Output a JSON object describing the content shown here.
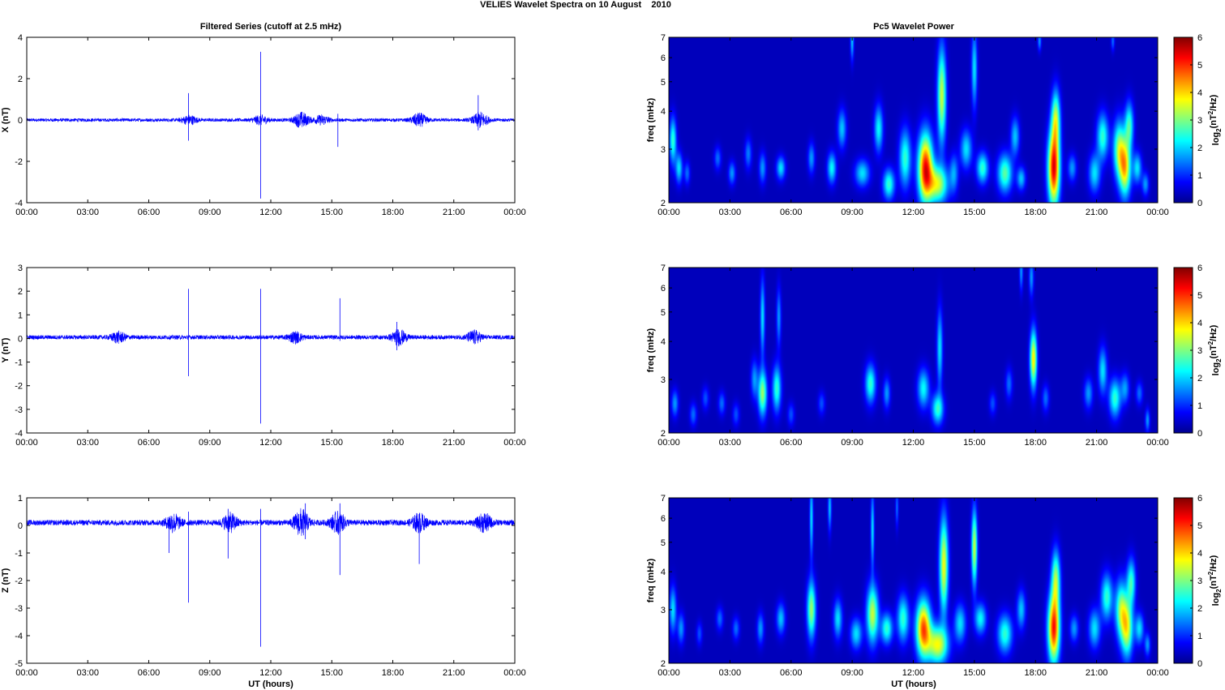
{
  "figure": {
    "suptitle": "VELIES Wavelet Spectra on 10 August    2010",
    "left_title": "Filtered Series (cutoff at 2.5 mHz)",
    "right_title": "Pc5 Wavelet Power",
    "xlabel": "UT (hours)",
    "freq_label": "freq (mHz)",
    "colorbar_label": "log2(nT2/Hz)",
    "colorbar_ticks": [
      0,
      1,
      2,
      3,
      4,
      5,
      6
    ],
    "x_tick_labels": [
      "00:00",
      "03:00",
      "06:00",
      "09:00",
      "12:00",
      "15:00",
      "18:00",
      "21:00",
      "00:00"
    ],
    "line_color": "#0000ff"
  },
  "chart_data": [
    {
      "type": "line",
      "name": "X",
      "ylabel": "X (nT)",
      "xlim": [
        0,
        24
      ],
      "ylim": [
        -4,
        4
      ],
      "yticks": [
        -4,
        -2,
        0,
        2,
        4
      ],
      "baseline": 0.0,
      "noise_amp": 0.08,
      "bursts": [
        [
          8.0,
          0.2
        ],
        [
          11.5,
          0.2
        ],
        [
          13.5,
          0.35
        ],
        [
          14.5,
          0.2
        ],
        [
          19.3,
          0.3
        ],
        [
          22.3,
          0.35
        ]
      ],
      "spikes": [
        [
          7.95,
          1.3,
          -1.0
        ],
        [
          11.5,
          3.3,
          -3.8
        ],
        [
          15.3,
          0.3,
          -1.3
        ],
        [
          22.2,
          1.2,
          -0.5
        ]
      ]
    },
    {
      "type": "line",
      "name": "Y",
      "ylabel": "Y (nT)",
      "xlim": [
        0,
        24
      ],
      "ylim": [
        -4,
        3
      ],
      "yticks": [
        -4,
        -3,
        -2,
        -1,
        0,
        1,
        2,
        3
      ],
      "baseline": 0.05,
      "noise_amp": 0.09,
      "bursts": [
        [
          4.5,
          0.2
        ],
        [
          13.2,
          0.2
        ],
        [
          18.3,
          0.3
        ],
        [
          22.0,
          0.25
        ]
      ],
      "spikes": [
        [
          7.95,
          2.1,
          -1.6
        ],
        [
          11.5,
          2.1,
          -3.6
        ],
        [
          15.4,
          1.7,
          -0.1
        ],
        [
          18.2,
          0.7,
          -0.5
        ],
        [
          24.0,
          0.1,
          -1.0
        ]
      ]
    },
    {
      "type": "line",
      "name": "Z",
      "ylabel": "Z (nT)",
      "xlim": [
        0,
        24
      ],
      "ylim": [
        -5,
        1
      ],
      "yticks": [
        -5,
        -4,
        -3,
        -2,
        -1,
        0,
        1
      ],
      "baseline": 0.1,
      "noise_amp": 0.1,
      "bursts": [
        [
          7.2,
          0.3
        ],
        [
          10.0,
          0.3
        ],
        [
          13.5,
          0.45
        ],
        [
          15.3,
          0.35
        ],
        [
          19.3,
          0.3
        ],
        [
          22.5,
          0.3
        ]
      ],
      "spikes": [
        [
          7.0,
          0.3,
          -1.0
        ],
        [
          7.95,
          0.5,
          -2.8
        ],
        [
          9.9,
          0.6,
          -1.2
        ],
        [
          11.5,
          0.6,
          -4.4
        ],
        [
          13.7,
          0.8,
          -0.5
        ],
        [
          15.4,
          0.8,
          -1.8
        ],
        [
          19.3,
          0.4,
          -1.4
        ]
      ]
    },
    {
      "type": "heatmap",
      "name": "X",
      "ylabel": "freq (mHz)",
      "xlim": [
        0,
        24
      ],
      "ylim": [
        2,
        7
      ],
      "yscale": "log",
      "yticks": [
        2,
        3,
        4,
        5,
        6,
        7
      ],
      "clim": [
        0,
        6
      ],
      "blobs": [
        [
          0.2,
          3.2,
          2.5,
          0.12,
          0.12
        ],
        [
          0.5,
          2.6,
          2.0,
          0.12,
          0.08
        ],
        [
          0.9,
          2.5,
          1.2,
          0.1,
          0.06
        ],
        [
          2.4,
          2.8,
          1.2,
          0.12,
          0.06
        ],
        [
          3.1,
          2.5,
          1.5,
          0.12,
          0.06
        ],
        [
          3.9,
          2.9,
          1.3,
          0.12,
          0.08
        ],
        [
          4.6,
          2.6,
          1.5,
          0.12,
          0.08
        ],
        [
          5.5,
          2.6,
          2.0,
          0.15,
          0.06
        ],
        [
          7.0,
          2.8,
          1.5,
          0.12,
          0.08
        ],
        [
          8.0,
          2.6,
          2.2,
          0.15,
          0.08
        ],
        [
          8.5,
          3.5,
          1.8,
          0.15,
          0.1
        ],
        [
          9.0,
          6.8,
          1.8,
          0.06,
          0.1
        ],
        [
          9.5,
          2.5,
          2.0,
          0.25,
          0.07
        ],
        [
          10.3,
          3.5,
          2.2,
          0.15,
          0.12
        ],
        [
          10.8,
          2.3,
          2.5,
          0.2,
          0.08
        ],
        [
          11.6,
          2.8,
          2.5,
          0.2,
          0.15
        ],
        [
          12.6,
          2.6,
          5.5,
          0.25,
          0.18
        ],
        [
          13.2,
          2.3,
          3.5,
          0.35,
          0.1
        ],
        [
          13.4,
          4.5,
          3.5,
          0.15,
          0.25
        ],
        [
          14.0,
          2.5,
          1.5,
          0.15,
          0.1
        ],
        [
          14.6,
          3.0,
          2.0,
          0.2,
          0.1
        ],
        [
          15.0,
          5.5,
          2.0,
          0.1,
          0.2
        ],
        [
          15.4,
          2.6,
          2.5,
          0.2,
          0.08
        ],
        [
          16.5,
          2.5,
          2.8,
          0.25,
          0.1
        ],
        [
          17.0,
          3.3,
          1.8,
          0.15,
          0.1
        ],
        [
          17.3,
          2.4,
          1.8,
          0.15,
          0.06
        ],
        [
          18.2,
          6.8,
          1.5,
          0.06,
          0.05
        ],
        [
          18.9,
          2.6,
          5.8,
          0.2,
          0.2
        ],
        [
          19.0,
          3.8,
          3.0,
          0.15,
          0.15
        ],
        [
          19.8,
          2.6,
          1.5,
          0.15,
          0.07
        ],
        [
          20.9,
          2.5,
          2.0,
          0.2,
          0.1
        ],
        [
          21.3,
          3.3,
          2.5,
          0.2,
          0.12
        ],
        [
          21.8,
          6.8,
          1.2,
          0.06,
          0.05
        ],
        [
          22.1,
          3.0,
          3.0,
          0.2,
          0.15
        ],
        [
          22.4,
          2.6,
          4.0,
          0.2,
          0.15
        ],
        [
          22.6,
          3.6,
          2.5,
          0.15,
          0.12
        ],
        [
          23.0,
          2.6,
          2.0,
          0.15,
          0.08
        ],
        [
          23.4,
          2.3,
          1.5,
          0.12,
          0.06
        ]
      ]
    },
    {
      "type": "heatmap",
      "name": "Y",
      "ylabel": "freq (mHz)",
      "xlim": [
        0,
        24
      ],
      "ylim": [
        2,
        7
      ],
      "yscale": "log",
      "yticks": [
        2,
        3,
        4,
        5,
        6,
        7
      ],
      "clim": [
        0,
        6
      ],
      "blobs": [
        [
          0.3,
          2.5,
          1.5,
          0.12,
          0.07
        ],
        [
          1.2,
          2.3,
          1.2,
          0.12,
          0.06
        ],
        [
          1.8,
          2.6,
          1.0,
          0.12,
          0.06
        ],
        [
          2.6,
          2.5,
          1.2,
          0.12,
          0.06
        ],
        [
          3.3,
          2.3,
          1.0,
          0.12,
          0.06
        ],
        [
          4.2,
          3.0,
          1.5,
          0.12,
          0.1
        ],
        [
          4.6,
          2.7,
          3.2,
          0.15,
          0.12
        ],
        [
          4.6,
          4.8,
          2.0,
          0.08,
          0.2
        ],
        [
          5.3,
          2.8,
          2.5,
          0.15,
          0.12
        ],
        [
          5.4,
          4.8,
          1.5,
          0.08,
          0.15
        ],
        [
          6.0,
          2.3,
          1.0,
          0.12,
          0.06
        ],
        [
          7.5,
          2.5,
          1.0,
          0.12,
          0.06
        ],
        [
          9.9,
          2.9,
          2.5,
          0.18,
          0.1
        ],
        [
          10.7,
          2.7,
          1.5,
          0.12,
          0.08
        ],
        [
          12.5,
          2.8,
          2.2,
          0.2,
          0.1
        ],
        [
          13.2,
          2.4,
          2.5,
          0.2,
          0.08
        ],
        [
          13.3,
          3.8,
          2.0,
          0.1,
          0.2
        ],
        [
          15.9,
          2.5,
          1.0,
          0.12,
          0.06
        ],
        [
          16.7,
          2.9,
          1.2,
          0.12,
          0.08
        ],
        [
          17.3,
          6.8,
          1.5,
          0.06,
          0.1
        ],
        [
          17.9,
          3.5,
          4.0,
          0.12,
          0.15
        ],
        [
          17.8,
          6.5,
          1.5,
          0.08,
          0.1
        ],
        [
          18.5,
          2.6,
          1.2,
          0.12,
          0.07
        ],
        [
          20.6,
          2.7,
          1.5,
          0.15,
          0.08
        ],
        [
          21.3,
          3.2,
          2.0,
          0.15,
          0.12
        ],
        [
          21.9,
          2.6,
          2.5,
          0.2,
          0.1
        ],
        [
          22.4,
          2.8,
          1.5,
          0.15,
          0.08
        ],
        [
          23.1,
          2.7,
          1.2,
          0.12,
          0.06
        ],
        [
          23.5,
          2.2,
          1.5,
          0.08,
          0.06
        ]
      ]
    },
    {
      "type": "heatmap",
      "name": "Z",
      "ylabel": "freq (mHz)",
      "xlim": [
        0,
        24
      ],
      "ylim": [
        2,
        7
      ],
      "yscale": "log",
      "yticks": [
        2,
        3,
        4,
        5,
        6,
        7
      ],
      "clim": [
        0,
        6
      ],
      "blobs": [
        [
          0.2,
          3.0,
          2.0,
          0.12,
          0.12
        ],
        [
          0.6,
          2.6,
          1.5,
          0.12,
          0.08
        ],
        [
          1.5,
          2.5,
          1.0,
          0.1,
          0.06
        ],
        [
          2.5,
          2.8,
          1.2,
          0.12,
          0.06
        ],
        [
          3.3,
          2.6,
          1.2,
          0.12,
          0.06
        ],
        [
          4.5,
          2.6,
          1.5,
          0.12,
          0.08
        ],
        [
          5.5,
          2.8,
          1.8,
          0.15,
          0.08
        ],
        [
          7.0,
          3.0,
          3.2,
          0.15,
          0.15
        ],
        [
          7.0,
          6.0,
          2.0,
          0.06,
          0.2
        ],
        [
          7.9,
          6.5,
          1.8,
          0.06,
          0.12
        ],
        [
          8.3,
          2.8,
          2.0,
          0.15,
          0.1
        ],
        [
          9.2,
          2.5,
          2.0,
          0.2,
          0.08
        ],
        [
          10.0,
          2.9,
          3.5,
          0.2,
          0.15
        ],
        [
          10.0,
          5.5,
          2.0,
          0.06,
          0.2
        ],
        [
          10.7,
          2.6,
          2.5,
          0.2,
          0.08
        ],
        [
          11.2,
          6.5,
          1.2,
          0.05,
          0.1
        ],
        [
          11.5,
          2.8,
          2.5,
          0.2,
          0.12
        ],
        [
          12.5,
          2.6,
          5.0,
          0.25,
          0.15
        ],
        [
          13.2,
          2.3,
          3.8,
          0.35,
          0.1
        ],
        [
          13.5,
          4.2,
          3.8,
          0.15,
          0.25
        ],
        [
          14.3,
          2.7,
          2.0,
          0.2,
          0.1
        ],
        [
          15.0,
          4.8,
          3.5,
          0.1,
          0.2
        ],
        [
          15.3,
          2.8,
          2.2,
          0.2,
          0.08
        ],
        [
          16.5,
          2.5,
          2.5,
          0.25,
          0.1
        ],
        [
          17.3,
          3.0,
          1.8,
          0.15,
          0.1
        ],
        [
          18.9,
          2.6,
          5.5,
          0.2,
          0.18
        ],
        [
          19.0,
          3.8,
          3.0,
          0.15,
          0.15
        ],
        [
          19.9,
          2.6,
          1.5,
          0.15,
          0.07
        ],
        [
          20.9,
          2.6,
          2.0,
          0.2,
          0.1
        ],
        [
          21.5,
          3.3,
          2.5,
          0.2,
          0.12
        ],
        [
          22.2,
          3.0,
          3.0,
          0.2,
          0.15
        ],
        [
          22.5,
          2.6,
          3.5,
          0.2,
          0.15
        ],
        [
          22.7,
          3.7,
          2.5,
          0.15,
          0.12
        ],
        [
          23.1,
          2.6,
          2.0,
          0.15,
          0.08
        ],
        [
          23.5,
          2.3,
          1.5,
          0.1,
          0.06
        ]
      ]
    }
  ]
}
